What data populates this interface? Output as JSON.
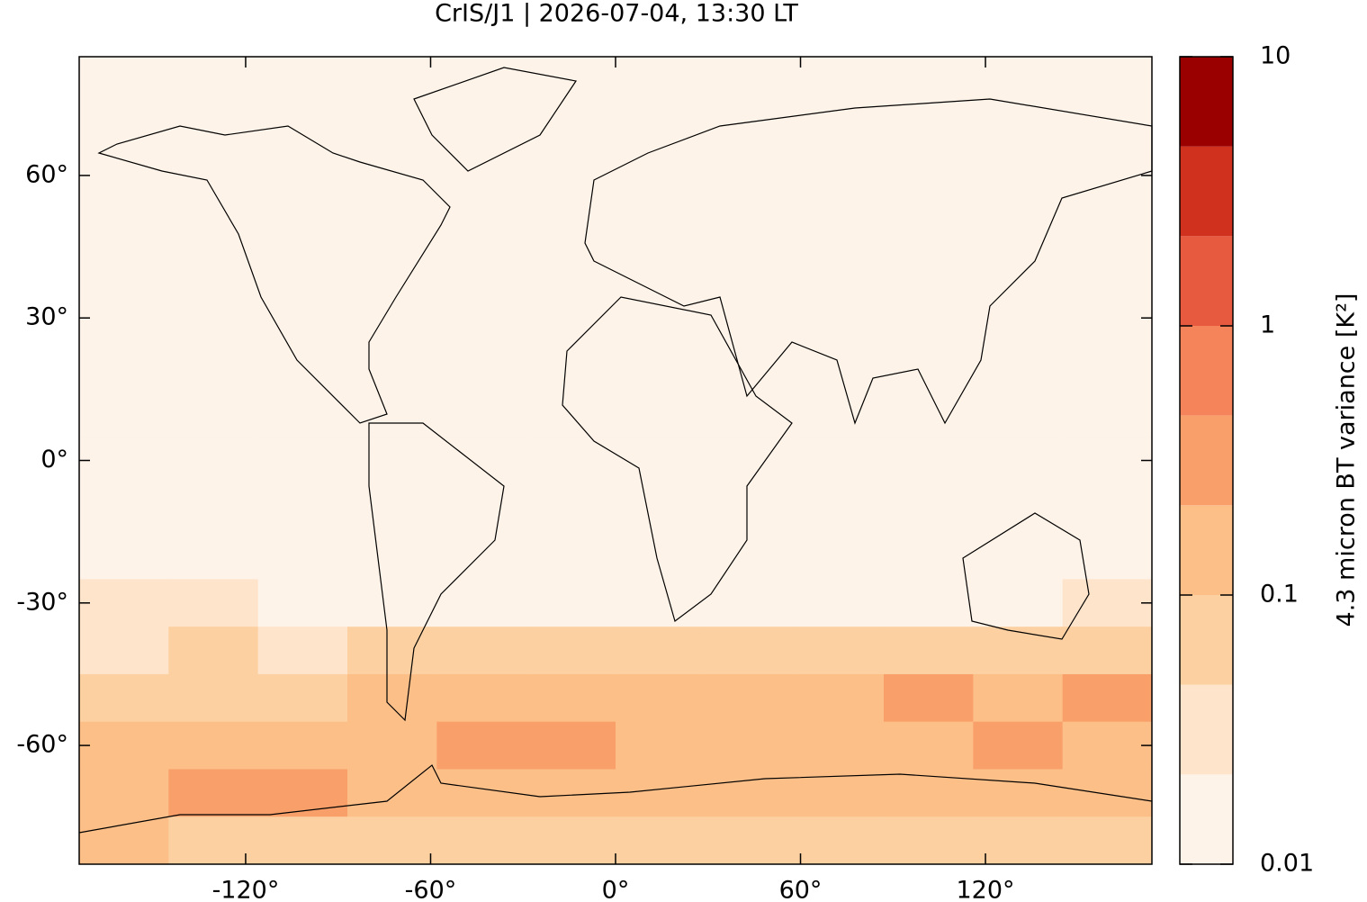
{
  "chart_data": {
    "type": "heatmap",
    "title": "CrIS/J1 | 2026-07-04, 13:30 LT",
    "lon_bins": [
      -174,
      -145,
      -116,
      -87,
      -58,
      -29,
      0,
      29,
      58,
      87,
      116,
      145,
      174
    ],
    "lat_bins": [
      85,
      75,
      65,
      55,
      45,
      35,
      25,
      15,
      5,
      -5,
      -15,
      -25,
      -35,
      -45,
      -55,
      -65,
      -75,
      -85
    ],
    "values": [
      [
        0.012,
        0.012,
        0.012,
        0.012,
        0.012,
        0.012,
        0.012,
        0.012,
        0.012,
        0.012,
        0.012,
        0.012
      ],
      [
        0.012,
        0.012,
        0.012,
        0.012,
        0.012,
        0.012,
        0.012,
        0.012,
        0.012,
        0.012,
        0.012,
        0.012
      ],
      [
        0.012,
        0.012,
        0.012,
        0.012,
        0.012,
        0.012,
        0.012,
        0.012,
        0.012,
        0.012,
        0.012,
        0.012
      ],
      [
        0.012,
        0.012,
        0.012,
        0.012,
        0.012,
        0.012,
        0.012,
        0.012,
        0.012,
        0.012,
        0.012,
        0.012
      ],
      [
        0.012,
        0.012,
        0.012,
        0.012,
        0.012,
        0.012,
        0.012,
        0.012,
        0.012,
        0.012,
        0.012,
        0.012
      ],
      [
        0.013,
        0.013,
        0.013,
        0.013,
        0.013,
        0.013,
        0.013,
        0.013,
        0.013,
        0.013,
        0.013,
        0.013
      ],
      [
        0.012,
        0.012,
        0.012,
        0.012,
        0.012,
        0.012,
        0.012,
        0.012,
        0.012,
        0.012,
        0.012,
        0.012
      ],
      [
        0.012,
        0.012,
        0.012,
        0.012,
        0.012,
        0.012,
        0.012,
        0.012,
        0.012,
        0.012,
        0.012,
        0.012
      ],
      [
        0.012,
        0.012,
        0.012,
        0.012,
        0.012,
        0.012,
        0.012,
        0.012,
        0.012,
        0.012,
        0.012,
        0.012
      ],
      [
        0.012,
        0.012,
        0.012,
        0.012,
        0.012,
        0.012,
        0.012,
        0.012,
        0.012,
        0.012,
        0.012,
        0.012
      ],
      [
        0.012,
        0.012,
        0.012,
        0.012,
        0.012,
        0.012,
        0.012,
        0.012,
        0.012,
        0.012,
        0.012,
        0.012
      ],
      [
        0.03,
        0.035,
        0.02,
        0.02,
        0.02,
        0.02,
        0.015,
        0.015,
        0.015,
        0.02,
        0.02,
        0.03
      ],
      [
        0.04,
        0.05,
        0.04,
        0.08,
        0.05,
        0.06,
        0.06,
        0.05,
        0.07,
        0.08,
        0.06,
        0.08
      ],
      [
        0.08,
        0.06,
        0.05,
        0.2,
        0.1,
        0.15,
        0.2,
        0.15,
        0.2,
        0.35,
        0.2,
        0.3
      ],
      [
        0.15,
        0.1,
        0.1,
        0.1,
        0.3,
        0.3,
        0.15,
        0.12,
        0.2,
        0.2,
        0.25,
        0.2
      ],
      [
        0.2,
        0.25,
        0.3,
        0.15,
        0.12,
        0.15,
        0.1,
        0.1,
        0.1,
        0.1,
        0.12,
        0.2
      ],
      [
        0.15,
        0.08,
        0.06,
        0.05,
        0.05,
        0.06,
        0.07,
        0.05,
        0.05,
        0.06,
        0.05,
        0.05
      ]
    ],
    "xlim": [
      -174,
      174
    ],
    "ylim": [
      -85,
      85
    ],
    "xticks": [
      {
        "value": -120,
        "label": "-120°"
      },
      {
        "value": -60,
        "label": "-60°"
      },
      {
        "value": 0,
        "label": "0°"
      },
      {
        "value": 60,
        "label": "60°"
      },
      {
        "value": 120,
        "label": "120°"
      }
    ],
    "yticks": [
      {
        "value": -60,
        "label": "-60°"
      },
      {
        "value": -30,
        "label": "-30°"
      },
      {
        "value": 0,
        "label": "0°"
      },
      {
        "value": 30,
        "label": "30°"
      },
      {
        "value": 60,
        "label": "60°"
      }
    ],
    "colorbar": {
      "label": "4.3 micron BT variance [K²]",
      "log_scale": true,
      "lim": [
        0.01,
        10
      ],
      "ticks": [
        0.01,
        0.1,
        1,
        10
      ],
      "colors": [
        "#fef3e8",
        "#fde4cb",
        "#fcd0a1",
        "#fcbf88",
        "#f9a06a",
        "#f5845a",
        "#e85a40",
        "#d0301e",
        "#9a0000"
      ]
    }
  }
}
